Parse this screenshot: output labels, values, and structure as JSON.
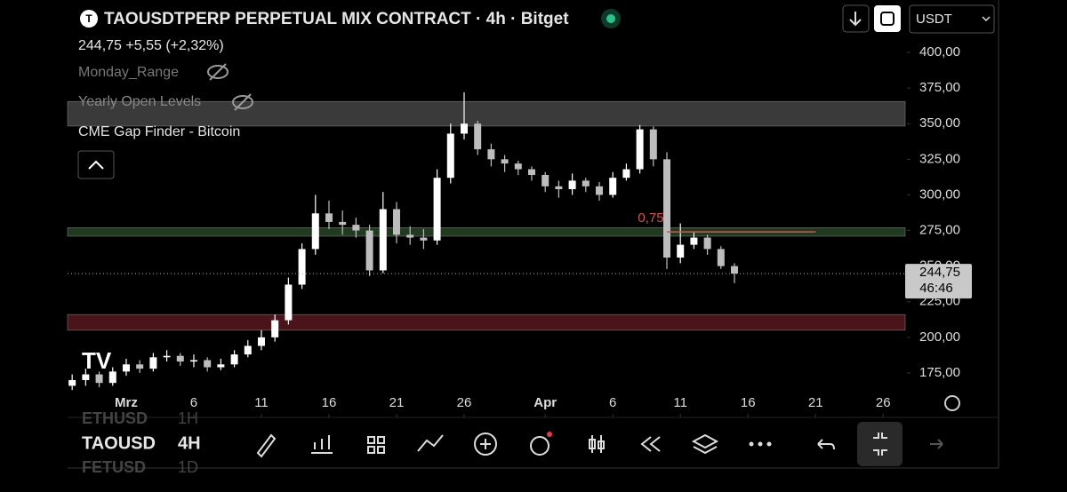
{
  "header": {
    "title": "TAOUSDTPERP PERPETUAL MIX CONTRACT · 4h · Bitget",
    "quote": "244,75 +5,55 (+2,32%)",
    "currency": "USDT"
  },
  "indicators": [
    "Monday_Range",
    "Yearly Open Levels",
    "CME Gap Finder - Bitcoin"
  ],
  "chart_data": {
    "type": "candlestick",
    "x": [
      -3,
      -2,
      -1,
      0,
      1,
      2,
      3,
      4,
      5,
      6,
      7,
      8,
      9,
      10,
      11,
      12,
      13,
      14,
      15,
      16,
      17,
      18,
      19,
      20,
      21,
      22,
      23,
      24,
      25,
      26,
      27,
      28,
      29,
      30,
      31,
      32,
      33,
      34,
      35,
      36,
      37,
      38,
      39,
      40,
      41,
      42,
      43,
      44,
      45,
      46
    ],
    "open": [
      166,
      170,
      174,
      168,
      176,
      181,
      178,
      186,
      187,
      183,
      184,
      179,
      181,
      188,
      194,
      200,
      212,
      237,
      262,
      287,
      281,
      279,
      275,
      247,
      290,
      272,
      270,
      268,
      312,
      343,
      350,
      332,
      325,
      322,
      318,
      314,
      306,
      304,
      310,
      306,
      300,
      312,
      318,
      346,
      325,
      256,
      265,
      270,
      262,
      250
    ],
    "high": [
      174,
      178,
      176,
      179,
      185,
      184,
      189,
      191,
      189,
      188,
      186,
      185,
      191,
      198,
      205,
      216,
      242,
      266,
      300,
      296,
      289,
      284,
      279,
      302,
      295,
      278,
      276,
      318,
      350,
      372,
      352,
      336,
      328,
      324,
      320,
      316,
      310,
      315,
      312,
      309,
      316,
      322,
      349,
      348,
      330,
      280,
      274,
      272,
      264,
      252
    ],
    "low": [
      163,
      166,
      165,
      166,
      173,
      175,
      176,
      183,
      180,
      179,
      176,
      177,
      179,
      186,
      191,
      197,
      209,
      234,
      258,
      276,
      272,
      270,
      243,
      245,
      266,
      265,
      262,
      265,
      308,
      339,
      328,
      320,
      316,
      314,
      310,
      302,
      298,
      300,
      302,
      296,
      298,
      310,
      315,
      320,
      248,
      252,
      262,
      258,
      248,
      238
    ],
    "close": [
      170,
      174,
      168,
      176,
      181,
      178,
      186,
      187,
      183,
      184,
      179,
      181,
      188,
      194,
      200,
      212,
      237,
      262,
      287,
      281,
      279,
      275,
      247,
      290,
      272,
      270,
      268,
      312,
      343,
      350,
      332,
      325,
      322,
      318,
      314,
      306,
      304,
      310,
      306,
      300,
      312,
      318,
      346,
      325,
      256,
      265,
      270,
      262,
      250,
      244.75
    ],
    "up_color": "#ffffff",
    "down_color": "#bdbdbd",
    "xlim": [
      -3.34,
      58.63
    ],
    "xticks": [
      {
        "value": 1,
        "label": "Mrz"
      },
      6,
      11,
      16,
      21,
      26,
      {
        "value": 32,
        "label": "Apr"
      },
      {
        "value": 37,
        "label": "6"
      },
      {
        "value": 42,
        "label": "11"
      },
      {
        "value": 47,
        "label": "16"
      },
      {
        "value": 52,
        "label": "21"
      },
      {
        "value": 57,
        "label": "26"
      }
    ],
    "ylim": [
      143.8,
      436.8
    ],
    "yticks": [
      {
        "value": 175,
        "label": "175,00"
      },
      {
        "value": 200,
        "label": "200,00"
      },
      {
        "value": 225,
        "label": "225,00"
      },
      {
        "value": 250,
        "label": "250,00"
      },
      {
        "value": 275,
        "label": "275,00"
      },
      {
        "value": 300,
        "label": "300,00"
      },
      {
        "value": 325,
        "label": "325,00"
      },
      {
        "value": 350,
        "label": "350,00"
      },
      {
        "value": 375,
        "label": "375,00"
      },
      {
        "value": 400,
        "label": "400,00"
      }
    ],
    "bands": [
      {
        "low": 348.3,
        "high": 365.6,
        "color": "#3a3a3a"
      },
      {
        "low": 271,
        "high": 277,
        "color": "#1f3a1f"
      },
      {
        "low": 205,
        "high": 216,
        "color": "#4a141a"
      }
    ],
    "level": {
      "value": 274,
      "from": 41,
      "to": 52,
      "label": "0,75",
      "color": "#e0504a"
    },
    "last_price": {
      "value": 244.75,
      "label": "244,75"
    },
    "countdown": "46:46"
  },
  "toolbar": {
    "symbol": "TAOUSD",
    "interval": "4H",
    "watch_above": [
      "ETHUSD",
      "1H"
    ],
    "watch_below": [
      "FETUSD",
      "1D"
    ]
  }
}
